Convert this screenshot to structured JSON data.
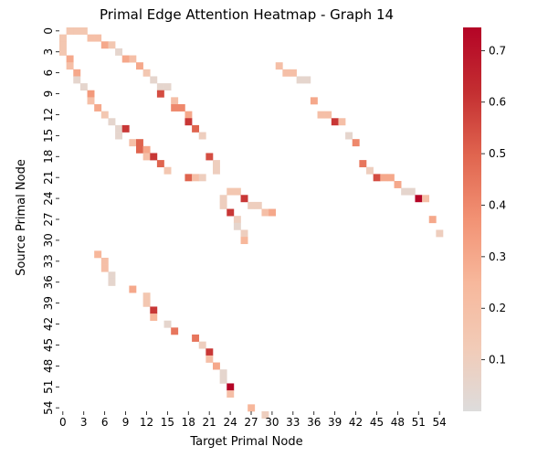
{
  "chart_data": {
    "type": "heatmap",
    "title": "Primal Edge Attention Heatmap - Graph 14",
    "xlabel": "Target Primal Node",
    "ylabel": "Source Primal Node",
    "x_range": [
      0,
      55
    ],
    "y_range": [
      0,
      55
    ],
    "tick_step": 3,
    "x_ticks": [
      "0",
      "3",
      "6",
      "9",
      "12",
      "15",
      "18",
      "21",
      "24",
      "27",
      "30",
      "33",
      "36",
      "39",
      "42",
      "45",
      "48",
      "51",
      "54"
    ],
    "y_ticks": [
      "0",
      "3",
      "6",
      "9",
      "12",
      "15",
      "18",
      "21",
      "24",
      "27",
      "30",
      "33",
      "36",
      "39",
      "42",
      "45",
      "48",
      "51",
      "54"
    ],
    "colorbar": {
      "min": 0.0,
      "max": 0.745,
      "ticks": [
        "0.1",
        "0.2",
        "0.3",
        "0.4",
        "0.5",
        "0.6",
        "0.7"
      ],
      "tick_values": [
        0.1,
        0.2,
        0.3,
        0.4,
        0.5,
        0.6,
        0.7
      ],
      "colormap": "coolwarm (red-blue, centered low)",
      "colors": [
        "#dddcdc",
        "#f2cbb7",
        "#f7b89c",
        "#f29274",
        "#e0654f",
        "#c32e31",
        "#b40426"
      ]
    },
    "cells": [
      {
        "src": 0,
        "tgt": 1,
        "value": 0.15
      },
      {
        "src": 0,
        "tgt": 2,
        "value": 0.15
      },
      {
        "src": 0,
        "tgt": 3,
        "value": 0.15
      },
      {
        "src": 1,
        "tgt": 0,
        "value": 0.15
      },
      {
        "src": 1,
        "tgt": 4,
        "value": 0.2
      },
      {
        "src": 1,
        "tgt": 5,
        "value": 0.2
      },
      {
        "src": 2,
        "tgt": 0,
        "value": 0.15
      },
      {
        "src": 2,
        "tgt": 6,
        "value": 0.3
      },
      {
        "src": 2,
        "tgt": 7,
        "value": 0.15
      },
      {
        "src": 3,
        "tgt": 0,
        "value": 0.15
      },
      {
        "src": 3,
        "tgt": 8,
        "value": 0.05
      },
      {
        "src": 4,
        "tgt": 1,
        "value": 0.3
      },
      {
        "src": 4,
        "tgt": 9,
        "value": 0.3
      },
      {
        "src": 4,
        "tgt": 10,
        "value": 0.2
      },
      {
        "src": 5,
        "tgt": 1,
        "value": 0.2
      },
      {
        "src": 5,
        "tgt": 11,
        "value": 0.3
      },
      {
        "src": 5,
        "tgt": 31,
        "value": 0.2
      },
      {
        "src": 6,
        "tgt": 2,
        "value": 0.3
      },
      {
        "src": 6,
        "tgt": 12,
        "value": 0.15
      },
      {
        "src": 6,
        "tgt": 32,
        "value": 0.2
      },
      {
        "src": 6,
        "tgt": 33,
        "value": 0.2
      },
      {
        "src": 7,
        "tgt": 2,
        "value": 0.05
      },
      {
        "src": 7,
        "tgt": 13,
        "value": 0.05
      },
      {
        "src": 7,
        "tgt": 34,
        "value": 0.05
      },
      {
        "src": 7,
        "tgt": 35,
        "value": 0.05
      },
      {
        "src": 8,
        "tgt": 3,
        "value": 0.05
      },
      {
        "src": 8,
        "tgt": 14,
        "value": 0.05
      },
      {
        "src": 8,
        "tgt": 15,
        "value": 0.05
      },
      {
        "src": 9,
        "tgt": 4,
        "value": 0.35
      },
      {
        "src": 9,
        "tgt": 14,
        "value": 0.55
      },
      {
        "src": 10,
        "tgt": 4,
        "value": 0.2
      },
      {
        "src": 10,
        "tgt": 16,
        "value": 0.2
      },
      {
        "src": 10,
        "tgt": 36,
        "value": 0.3
      },
      {
        "src": 11,
        "tgt": 5,
        "value": 0.3
      },
      {
        "src": 11,
        "tgt": 16,
        "value": 0.4
      },
      {
        "src": 11,
        "tgt": 17,
        "value": 0.4
      },
      {
        "src": 12,
        "tgt": 6,
        "value": 0.15
      },
      {
        "src": 12,
        "tgt": 18,
        "value": 0.3
      },
      {
        "src": 12,
        "tgt": 37,
        "value": 0.2
      },
      {
        "src": 12,
        "tgt": 38,
        "value": 0.2
      },
      {
        "src": 13,
        "tgt": 7,
        "value": 0.05
      },
      {
        "src": 13,
        "tgt": 18,
        "value": 0.6
      },
      {
        "src": 13,
        "tgt": 39,
        "value": 0.6
      },
      {
        "src": 13,
        "tgt": 40,
        "value": 0.2
      },
      {
        "src": 14,
        "tgt": 8,
        "value": 0.05
      },
      {
        "src": 14,
        "tgt": 9,
        "value": 0.6
      },
      {
        "src": 14,
        "tgt": 19,
        "value": 0.5
      },
      {
        "src": 15,
        "tgt": 8,
        "value": 0.05
      },
      {
        "src": 15,
        "tgt": 20,
        "value": 0.1
      },
      {
        "src": 15,
        "tgt": 41,
        "value": 0.05
      },
      {
        "src": 16,
        "tgt": 10,
        "value": 0.2
      },
      {
        "src": 16,
        "tgt": 11,
        "value": 0.5
      },
      {
        "src": 16,
        "tgt": 42,
        "value": 0.4
      },
      {
        "src": 17,
        "tgt": 11,
        "value": 0.5
      },
      {
        "src": 17,
        "tgt": 12,
        "value": 0.3
      },
      {
        "src": 18,
        "tgt": 12,
        "value": 0.2
      },
      {
        "src": 18,
        "tgt": 13,
        "value": 0.6
      },
      {
        "src": 18,
        "tgt": 21,
        "value": 0.55
      },
      {
        "src": 19,
        "tgt": 14,
        "value": 0.5
      },
      {
        "src": 19,
        "tgt": 22,
        "value": 0.1
      },
      {
        "src": 19,
        "tgt": 43,
        "value": 0.45
      },
      {
        "src": 20,
        "tgt": 15,
        "value": 0.15
      },
      {
        "src": 20,
        "tgt": 22,
        "value": 0.1
      },
      {
        "src": 20,
        "tgt": 44,
        "value": 0.1
      },
      {
        "src": 21,
        "tgt": 18,
        "value": 0.5
      },
      {
        "src": 21,
        "tgt": 19,
        "value": 0.2
      },
      {
        "src": 21,
        "tgt": 20,
        "value": 0.1
      },
      {
        "src": 21,
        "tgt": 45,
        "value": 0.55
      },
      {
        "src": 21,
        "tgt": 46,
        "value": 0.3
      },
      {
        "src": 21,
        "tgt": 47,
        "value": 0.3
      },
      {
        "src": 22,
        "tgt": 48,
        "value": 0.3
      },
      {
        "src": 23,
        "tgt": 24,
        "value": 0.15
      },
      {
        "src": 23,
        "tgt": 25,
        "value": 0.15
      },
      {
        "src": 23,
        "tgt": 49,
        "value": 0.05
      },
      {
        "src": 23,
        "tgt": 50,
        "value": 0.05
      },
      {
        "src": 24,
        "tgt": 23,
        "value": 0.1
      },
      {
        "src": 24,
        "tgt": 26,
        "value": 0.6
      },
      {
        "src": 24,
        "tgt": 51,
        "value": 0.745
      },
      {
        "src": 24,
        "tgt": 52,
        "value": 0.2
      },
      {
        "src": 25,
        "tgt": 23,
        "value": 0.1
      },
      {
        "src": 25,
        "tgt": 27,
        "value": 0.1
      },
      {
        "src": 25,
        "tgt": 28,
        "value": 0.1
      },
      {
        "src": 26,
        "tgt": 24,
        "value": 0.6
      },
      {
        "src": 26,
        "tgt": 29,
        "value": 0.2
      },
      {
        "src": 26,
        "tgt": 30,
        "value": 0.3
      },
      {
        "src": 27,
        "tgt": 25,
        "value": 0.1
      },
      {
        "src": 27,
        "tgt": 53,
        "value": 0.3
      },
      {
        "src": 28,
        "tgt": 25,
        "value": 0.05
      },
      {
        "src": 29,
        "tgt": 26,
        "value": 0.1
      },
      {
        "src": 29,
        "tgt": 54,
        "value": 0.1
      },
      {
        "src": 30,
        "tgt": 26,
        "value": 0.25
      },
      {
        "src": 32,
        "tgt": 5,
        "value": 0.25
      },
      {
        "src": 33,
        "tgt": 6,
        "value": 0.2
      },
      {
        "src": 34,
        "tgt": 6,
        "value": 0.2
      },
      {
        "src": 35,
        "tgt": 7,
        "value": 0.05
      },
      {
        "src": 36,
        "tgt": 7,
        "value": 0.05
      },
      {
        "src": 37,
        "tgt": 10,
        "value": 0.3
      },
      {
        "src": 38,
        "tgt": 12,
        "value": 0.15
      },
      {
        "src": 39,
        "tgt": 12,
        "value": 0.15
      },
      {
        "src": 40,
        "tgt": 13,
        "value": 0.6
      },
      {
        "src": 41,
        "tgt": 13,
        "value": 0.25
      },
      {
        "src": 42,
        "tgt": 15,
        "value": 0.05
      },
      {
        "src": 43,
        "tgt": 16,
        "value": 0.45
      },
      {
        "src": 44,
        "tgt": 19,
        "value": 0.45
      },
      {
        "src": 45,
        "tgt": 20,
        "value": 0.1
      },
      {
        "src": 46,
        "tgt": 21,
        "value": 0.6
      },
      {
        "src": 47,
        "tgt": 21,
        "value": 0.2
      },
      {
        "src": 48,
        "tgt": 22,
        "value": 0.3
      },
      {
        "src": 49,
        "tgt": 23,
        "value": 0.05
      },
      {
        "src": 50,
        "tgt": 23,
        "value": 0.05
      },
      {
        "src": 51,
        "tgt": 24,
        "value": 0.745
      },
      {
        "src": 52,
        "tgt": 24,
        "value": 0.2
      },
      {
        "src": 54,
        "tgt": 27,
        "value": 0.25
      },
      {
        "src": 55,
        "tgt": 29,
        "value": 0.1
      }
    ]
  }
}
